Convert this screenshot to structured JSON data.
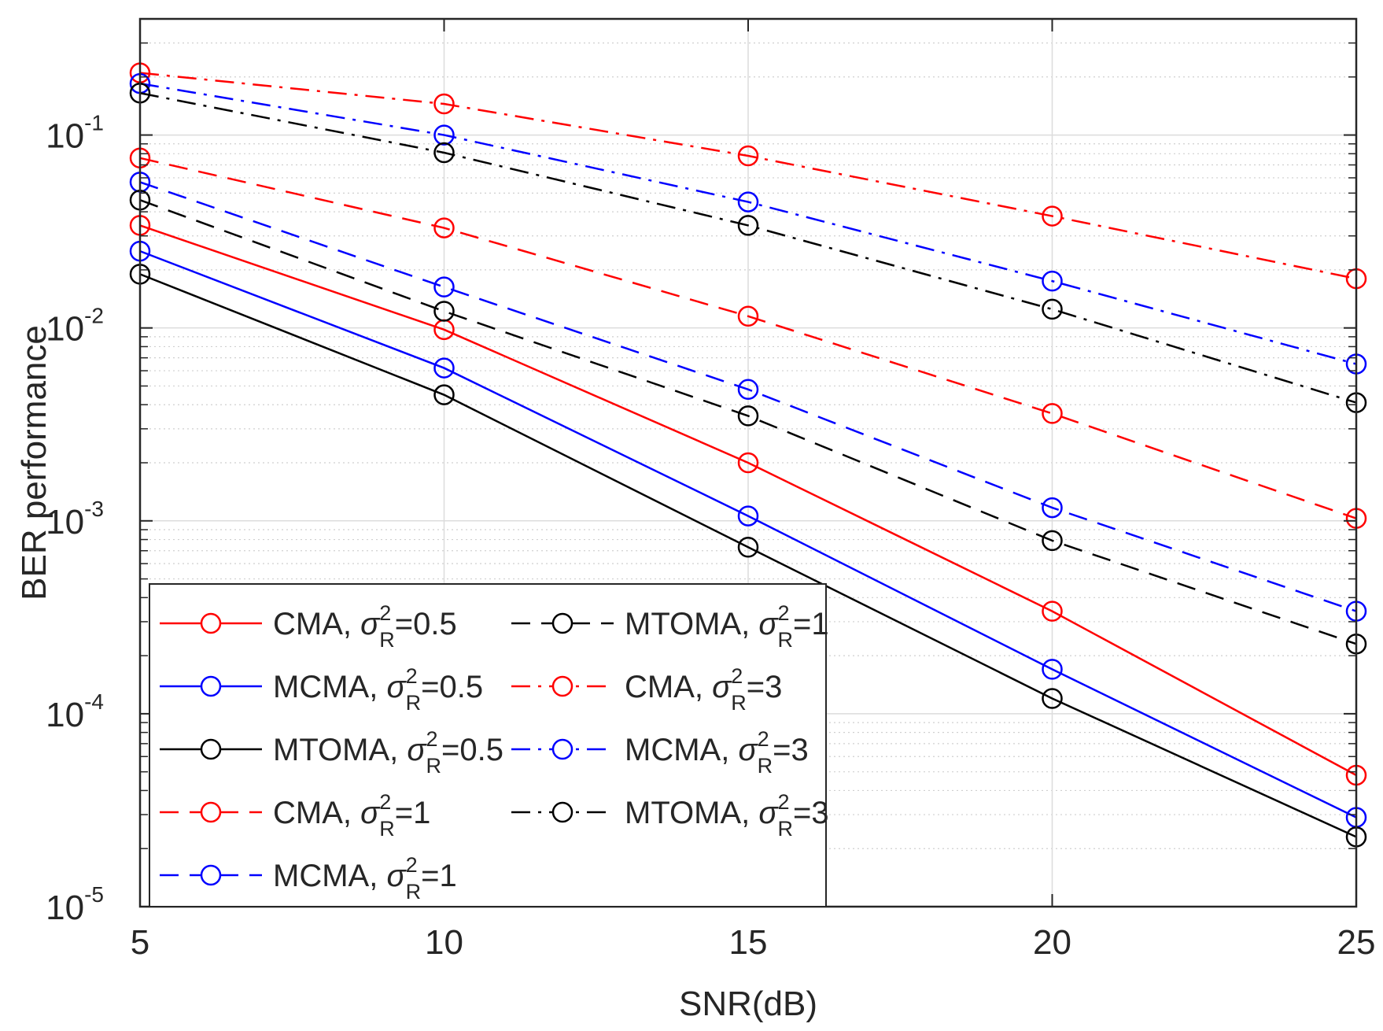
{
  "chart_data": {
    "type": "line",
    "xlabel": "SNR(dB)",
    "ylabel": "BER performance",
    "yscale": "log",
    "xlim": [
      5,
      25
    ],
    "ylim": [
      1e-05,
      0.4
    ],
    "grid": true,
    "legend_position": "bottom-left",
    "x": [
      5,
      10,
      15,
      20,
      25
    ],
    "x_tick_labels": [
      "5",
      "10",
      "15",
      "20",
      "25"
    ],
    "y_tick_labels": [
      {
        "base": "10",
        "exp": "-1"
      },
      {
        "base": "10",
        "exp": "-2"
      },
      {
        "base": "10",
        "exp": "-3"
      },
      {
        "base": "10",
        "exp": "-4"
      },
      {
        "base": "10",
        "exp": "-5"
      }
    ],
    "series": [
      {
        "name": "CMA, σ²R=0.5",
        "algo": "CMA",
        "sigma_value": "=0.5",
        "color": "#ff0000",
        "dash": "solid",
        "values": [
          0.034,
          0.0098,
          0.002,
          0.00034,
          4.8e-05
        ]
      },
      {
        "name": "MCMA, σ²R=0.5",
        "algo": "MCMA",
        "sigma_value": "=0.5",
        "color": "#0000ff",
        "dash": "solid",
        "values": [
          0.025,
          0.0062,
          0.00106,
          0.00017,
          2.9e-05
        ]
      },
      {
        "name": "MTOMA, σ²R=0.5",
        "algo": "MTOMA",
        "sigma_value": "=0.5",
        "color": "#000000",
        "dash": "solid",
        "values": [
          0.019,
          0.0045,
          0.00073,
          0.00012,
          2.3e-05
        ]
      },
      {
        "name": "CMA, σ²R=1",
        "algo": "CMA",
        "sigma_value": "=1",
        "color": "#ff0000",
        "dash": "dashed",
        "values": [
          0.076,
          0.033,
          0.0115,
          0.0036,
          0.00103
        ]
      },
      {
        "name": "MCMA, σ²R=1",
        "algo": "MCMA",
        "sigma_value": "=1",
        "color": "#0000ff",
        "dash": "dashed",
        "values": [
          0.057,
          0.0163,
          0.0048,
          0.00117,
          0.00034
        ]
      },
      {
        "name": "MTOMA, σ²R=1",
        "algo": "MTOMA",
        "sigma_value": "=1",
        "color": "#000000",
        "dash": "dashed",
        "values": [
          0.046,
          0.0122,
          0.0035,
          0.00079,
          0.00023
        ]
      },
      {
        "name": "CMA, σ²R=3",
        "algo": "CMA",
        "sigma_value": "=3",
        "color": "#ff0000",
        "dash": "dashdot",
        "values": [
          0.21,
          0.145,
          0.078,
          0.038,
          0.018
        ]
      },
      {
        "name": "MCMA, σ²R=3",
        "algo": "MCMA",
        "sigma_value": "=3",
        "color": "#0000ff",
        "dash": "dashdot",
        "values": [
          0.185,
          0.1,
          0.045,
          0.0175,
          0.0065
        ]
      },
      {
        "name": "MTOMA, σ²R=3",
        "algo": "MTOMA",
        "sigma_value": "=3",
        "color": "#000000",
        "dash": "dashdot",
        "values": [
          0.165,
          0.081,
          0.034,
          0.0125,
          0.0041
        ]
      }
    ],
    "legend_sigma": {
      "symbol": "σ",
      "sup": "2",
      "sub": "R"
    }
  }
}
